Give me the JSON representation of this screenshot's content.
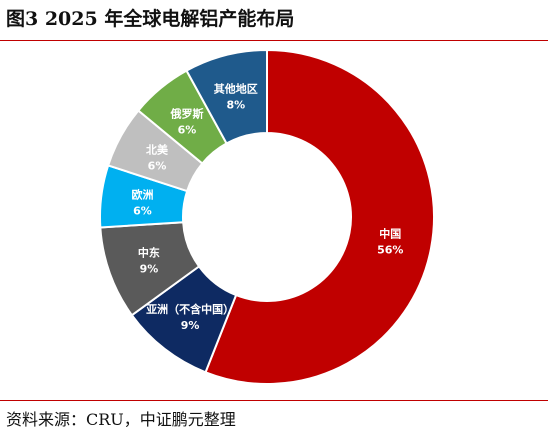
{
  "title": "图3  2025 年全球电解铝产能布局",
  "source": "资料来源：CRU，中证鹏元整理",
  "chart_data": {
    "type": "pie",
    "donut": true,
    "title": "图3  2025 年全球电解铝产能布局",
    "legend": "none",
    "slices": [
      {
        "label": "中国",
        "value": 56,
        "value_label": "56%",
        "color": "#c00000",
        "text_color": "#ffffff"
      },
      {
        "label": "亚洲（不含中国）",
        "value": 9,
        "value_label": "9%",
        "color": "#0e2a62",
        "text_color": "#ffffff"
      },
      {
        "label": "中东",
        "value": 9,
        "value_label": "9%",
        "color": "#5a5a5a",
        "text_color": "#ffffff"
      },
      {
        "label": "欧洲",
        "value": 6,
        "value_label": "6%",
        "color": "#00b0f0",
        "text_color": "#ffffff"
      },
      {
        "label": "北美",
        "value": 6,
        "value_label": "6%",
        "color": "#bfbfbf",
        "text_color": "#ffffff"
      },
      {
        "label": "俄罗斯",
        "value": 6,
        "value_label": "6%",
        "color": "#70ad47",
        "text_color": "#ffffff"
      },
      {
        "label": "其他地区",
        "value": 8,
        "value_label": "8%",
        "color": "#1f5a8c",
        "text_color": "#ffffff"
      }
    ]
  }
}
